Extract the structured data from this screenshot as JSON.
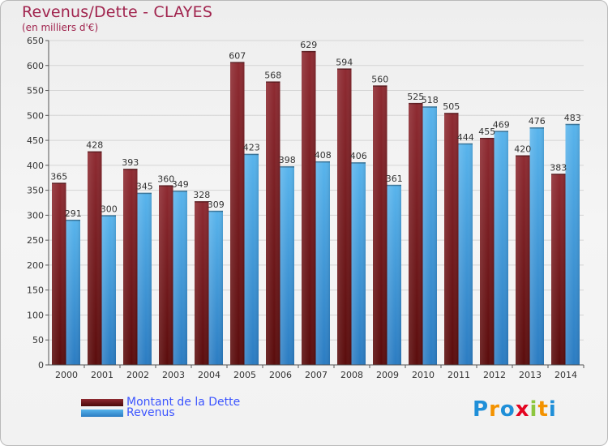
{
  "chart_data": {
    "type": "bar",
    "title": "Revenus/Dette - CLAYES",
    "subtitle": "(en milliers d'€)",
    "categories": [
      "2000",
      "2001",
      "2002",
      "2003",
      "2004",
      "2005",
      "2006",
      "2007",
      "2008",
      "2009",
      "2010",
      "2011",
      "2012",
      "2013",
      "2014"
    ],
    "series": [
      {
        "name": "Montant de la Dette",
        "values": [
          365,
          428,
          393,
          360,
          328,
          607,
          568,
          629,
          594,
          560,
          525,
          505,
          455,
          420,
          383
        ],
        "color": "#8b1a1a"
      },
      {
        "name": "Revenus",
        "values": [
          291,
          300,
          345,
          349,
          309,
          423,
          398,
          408,
          406,
          361,
          518,
          444,
          469,
          476,
          483
        ],
        "color": "#3b9de3"
      }
    ],
    "ylim": [
      0,
      650
    ],
    "yticks": [
      0,
      50,
      100,
      150,
      200,
      250,
      300,
      350,
      400,
      450,
      500,
      550,
      600,
      650
    ],
    "grid": true,
    "legend": "bottom-left"
  },
  "legend": {
    "dette_label": "Montant de la Dette",
    "revenus_label": "Revenus"
  },
  "logo": {
    "letters": [
      "P",
      "r",
      "o",
      "x",
      "i",
      "t",
      "i"
    ],
    "colors": [
      "#1f8fd8",
      "#f39200",
      "#1f8fd8",
      "#e40521",
      "#8dc63f",
      "#f39200",
      "#1f8fd8"
    ]
  }
}
